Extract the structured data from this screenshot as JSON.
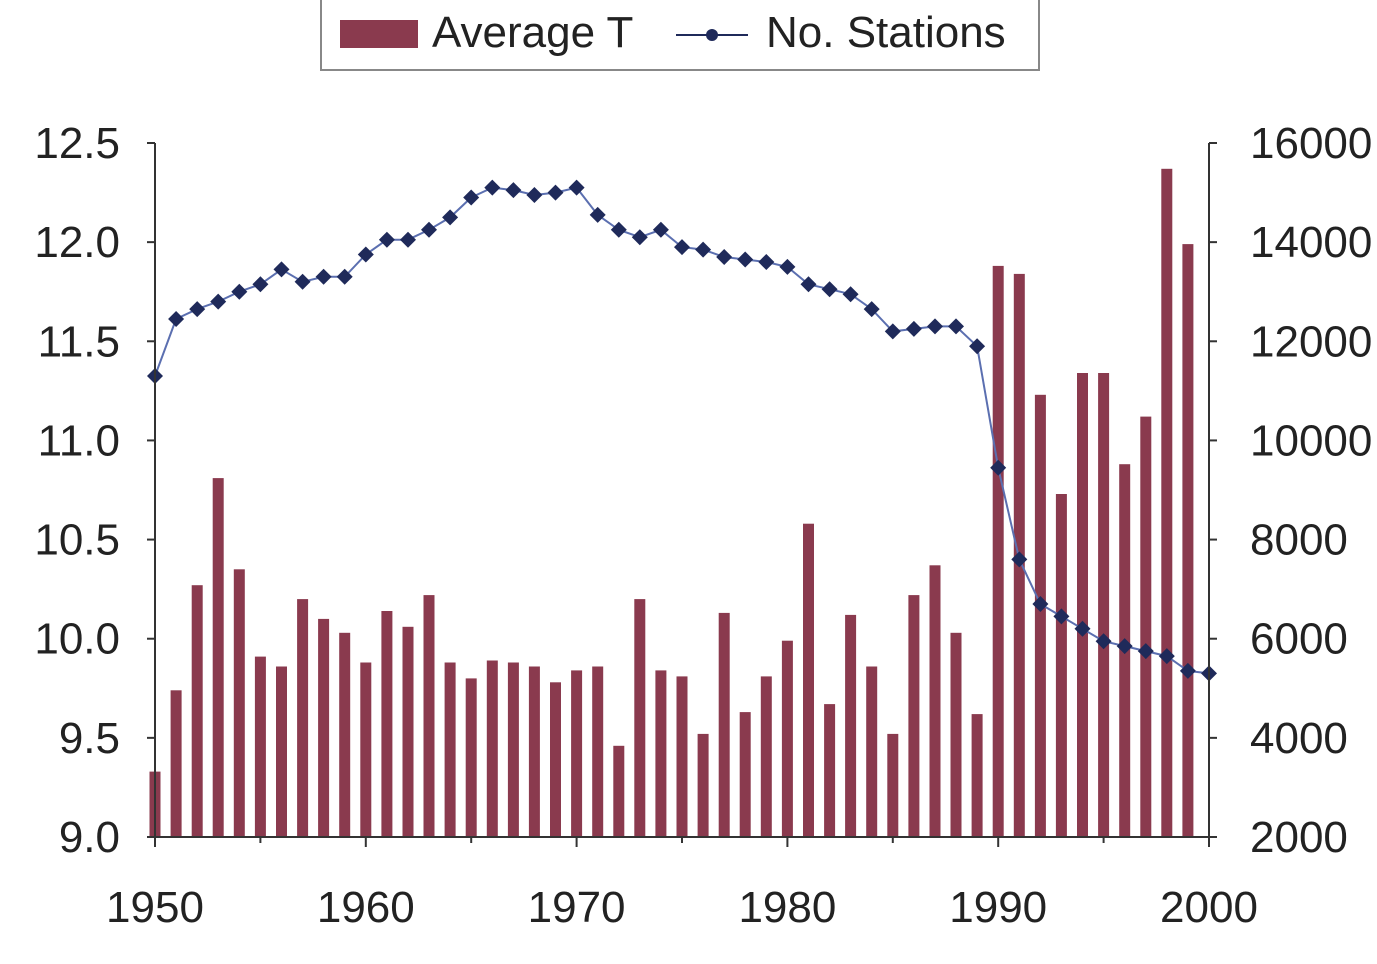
{
  "chart_data": {
    "type": "bar+line",
    "title": "",
    "legend": {
      "placement": "top-center",
      "items": [
        {
          "label": "Average T",
          "kind": "bar"
        },
        {
          "label": "No. Stations",
          "kind": "line-marker"
        }
      ]
    },
    "x_axis": {
      "range": [
        1950,
        2000
      ],
      "ticks": [
        "1950",
        "1960",
        "1970",
        "1980",
        "1990",
        "2000"
      ]
    },
    "y_left": {
      "range": [
        9.0,
        12.5
      ],
      "ticks": [
        "9.0",
        "9.5",
        "10.0",
        "10.5",
        "11.0",
        "11.5",
        "12.0",
        "12.5"
      ]
    },
    "y_right": {
      "range": [
        2000,
        16000
      ],
      "ticks": [
        "2000",
        "4000",
        "6000",
        "8000",
        "10000",
        "12000",
        "14000",
        "16000"
      ]
    },
    "grid": false,
    "years": [
      1950,
      1951,
      1952,
      1953,
      1954,
      1955,
      1956,
      1957,
      1958,
      1959,
      1960,
      1961,
      1962,
      1963,
      1964,
      1965,
      1966,
      1967,
      1968,
      1969,
      1970,
      1971,
      1972,
      1973,
      1974,
      1975,
      1976,
      1977,
      1978,
      1979,
      1980,
      1981,
      1982,
      1983,
      1984,
      1985,
      1986,
      1987,
      1988,
      1989,
      1990,
      1991,
      1992,
      1993,
      1994,
      1995,
      1996,
      1997,
      1998,
      1999,
      2000
    ],
    "series": [
      {
        "name": "Average T",
        "axis": "left",
        "color": "#8a3a4e",
        "values": [
          9.33,
          9.74,
          10.27,
          10.81,
          10.35,
          9.91,
          9.86,
          10.2,
          10.1,
          10.03,
          9.88,
          10.14,
          10.06,
          10.22,
          9.88,
          9.8,
          9.89,
          9.88,
          9.86,
          9.78,
          9.84,
          9.86,
          9.46,
          10.2,
          9.84,
          9.81,
          9.52,
          10.13,
          9.63,
          9.81,
          9.99,
          10.58,
          9.67,
          10.12,
          9.86,
          9.52,
          10.22,
          10.37,
          10.03,
          9.62,
          11.88,
          11.84,
          11.23,
          10.73,
          11.34,
          11.34,
          10.88,
          11.12,
          12.37,
          11.99,
          null
        ]
      },
      {
        "name": "No. Stations",
        "axis": "right",
        "color": "#1f2a5a",
        "values": [
          11300,
          12450,
          12650,
          12800,
          13000,
          13150,
          13450,
          13200,
          13300,
          13300,
          13750,
          14050,
          14050,
          14250,
          14500,
          14900,
          15100,
          15050,
          14950,
          15000,
          15100,
          14550,
          14250,
          14100,
          14250,
          13900,
          13850,
          13700,
          13650,
          13600,
          13500,
          13150,
          13050,
          12950,
          12650,
          12200,
          12250,
          12300,
          12300,
          11900,
          9450,
          7600,
          6700,
          6450,
          6200,
          5950,
          5850,
          5750,
          5650,
          5350,
          5300
        ]
      }
    ]
  }
}
